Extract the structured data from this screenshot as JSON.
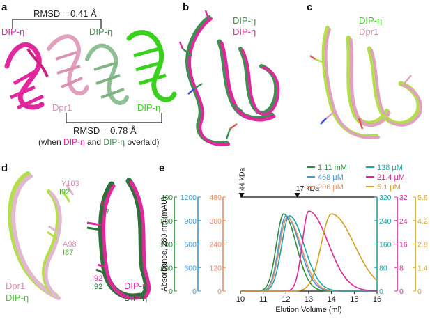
{
  "panels": {
    "a": {
      "letter": "a",
      "rmsd_top": "RMSD = 0.41 Å",
      "rmsd_bottom": "RMSD = 0.78 Å",
      "note_prefix": "(when ",
      "note_mid": " and ",
      "note_suffix": " overlaid)",
      "labels": {
        "dip_eta_magenta": "DIP-η",
        "dpr1": "Dpr1",
        "dip_eta_darkgreen": "DIP-η",
        "dip_eta_green": "DIP-η",
        "note_magenta": "DIP-η",
        "note_darkgreen": "DIP-η"
      }
    },
    "b": {
      "letter": "b",
      "label_dark": "DIP-η",
      "label_magenta": "DIP-η"
    },
    "c": {
      "letter": "c",
      "label_green": "DIP-η",
      "label_pink": "Dpr1"
    },
    "d": {
      "letter": "d",
      "residues": {
        "y103": "Y103",
        "i92_green": "I92",
        "a98": "A98",
        "i87_green": "I87",
        "i87_magenta": "I87",
        "i87_dark": "I87",
        "i92_magenta": "I92",
        "i92_dark": "I92"
      },
      "labels": {
        "dpr1": "Dpr1",
        "dip_eta_green": "DIP-η",
        "dip_eta_magenta": "DIP-η",
        "dip_eta_dark": "DIP-η"
      }
    },
    "e": {
      "letter": "e"
    }
  },
  "colors": {
    "magenta": "#e0289c",
    "dark_green": "#3f8f52",
    "green": "#39d11e",
    "pink": "#e0a0be",
    "lime": "#b3e04a"
  },
  "chart_data": {
    "type": "line",
    "xlabel": "Elution Volume (ml)",
    "ylabel": "Absorbance, 280 nm (mAU)",
    "xlim": [
      10,
      16
    ],
    "xticks": [
      "10",
      "11",
      "12",
      "13",
      "14",
      "15",
      "16"
    ],
    "markers": [
      {
        "label": "44 kDa",
        "x": 10.05
      },
      {
        "label": "17 kDa",
        "x": 12.5
      }
    ],
    "y_axes": [
      {
        "color": "#2e8b3a",
        "side": "left",
        "ylim": [
          0,
          2400
        ],
        "ticks": [
          "0",
          "600",
          "1200",
          "1800",
          "2400"
        ]
      },
      {
        "color": "#3a9bd8",
        "side": "left",
        "ylim": [
          0,
          1200
        ],
        "ticks": [
          "0",
          "300",
          "600",
          "900",
          "1200"
        ]
      },
      {
        "color": "#f08a5d",
        "side": "left",
        "ylim": [
          0,
          480
        ],
        "ticks": [
          "0",
          "120",
          "240",
          "360",
          "480"
        ]
      },
      {
        "color": "#1aa6a8",
        "side": "right",
        "ylim": [
          0,
          320
        ],
        "ticks": [
          "0",
          "80",
          "160",
          "240",
          "320"
        ]
      },
      {
        "color": "#e0249a",
        "side": "right",
        "ylim": [
          0,
          32
        ],
        "ticks": [
          "0",
          "8",
          "16",
          "24",
          "32"
        ]
      },
      {
        "color": "#d4a020",
        "side": "right",
        "ylim": [
          0,
          5.6
        ],
        "ticks": [
          "0",
          "1.4",
          "2.8",
          "4.2",
          "5.6"
        ]
      }
    ],
    "series": [
      {
        "name": "1.11 mM",
        "color": "#2e8b3a",
        "peak_x": 11.9,
        "peak_height": 0.82,
        "width_left": 0.32,
        "width_right": 0.55
      },
      {
        "name": "468 µM",
        "color": "#3a9bd8",
        "peak_x": 12.0,
        "peak_height": 0.8,
        "width_left": 0.32,
        "width_right": 0.6
      },
      {
        "name": "206 µM",
        "color": "#f08a5d",
        "peak_x": 12.05,
        "peak_height": 0.78,
        "width_left": 0.33,
        "width_right": 0.62
      },
      {
        "name": "138 µM",
        "color": "#1aa6a8",
        "peak_x": 12.15,
        "peak_height": 0.8,
        "width_left": 0.34,
        "width_right": 0.65
      },
      {
        "name": "21.4 µM",
        "color": "#e0249a",
        "peak_x": 13.0,
        "peak_height": 0.85,
        "width_left": 0.28,
        "width_right": 0.85
      },
      {
        "name": "5.1 µM",
        "color": "#d4a020",
        "peak_x": 14.0,
        "peak_height": 0.82,
        "width_left": 0.45,
        "width_right": 1.0
      }
    ]
  }
}
